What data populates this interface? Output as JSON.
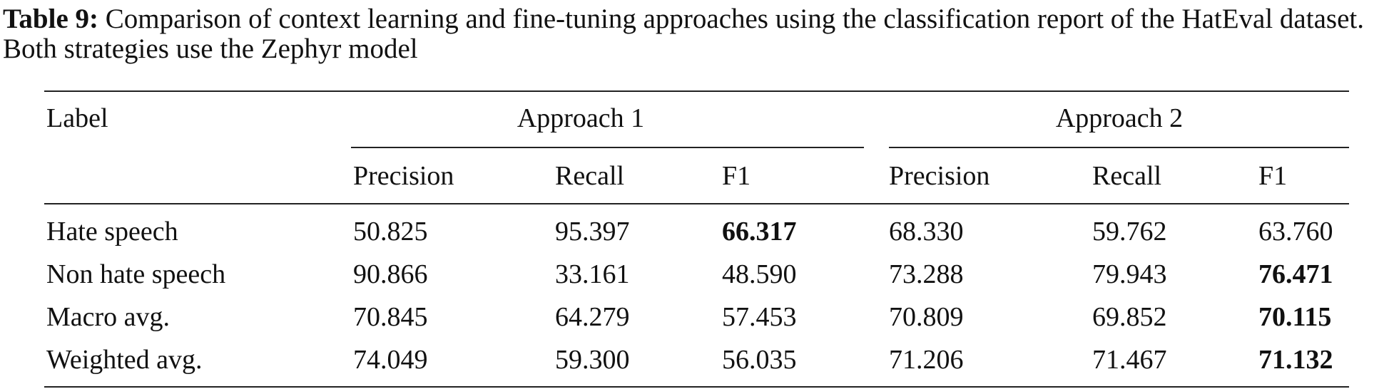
{
  "caption": {
    "label": "Table 9:",
    "text": "Comparison of context learning and fine-tuning approaches using the classification report of the HatEval dataset. Both strategies use the Zephyr model"
  },
  "table": {
    "row_header": "Label",
    "groups": [
      "Approach 1",
      "Approach 2"
    ],
    "columns": [
      "Precision",
      "Recall",
      "F1",
      "Precision",
      "Recall",
      "F1"
    ],
    "rows": [
      {
        "label": "Hate speech",
        "cells": [
          "50.825",
          "95.397",
          "66.317",
          "68.330",
          "59.762",
          "63.760"
        ],
        "bold": [
          2
        ]
      },
      {
        "label": "Non hate speech",
        "cells": [
          "90.866",
          "33.161",
          "48.590",
          "73.288",
          "79.943",
          "76.471"
        ],
        "bold": [
          5
        ]
      },
      {
        "label": "Macro avg.",
        "cells": [
          "70.845",
          "64.279",
          "57.453",
          "70.809",
          "69.852",
          "70.115"
        ],
        "bold": [
          5
        ]
      },
      {
        "label": "Weighted avg.",
        "cells": [
          "74.049",
          "59.300",
          "56.035",
          "71.206",
          "71.467",
          "71.132"
        ],
        "bold": [
          5
        ]
      }
    ]
  }
}
